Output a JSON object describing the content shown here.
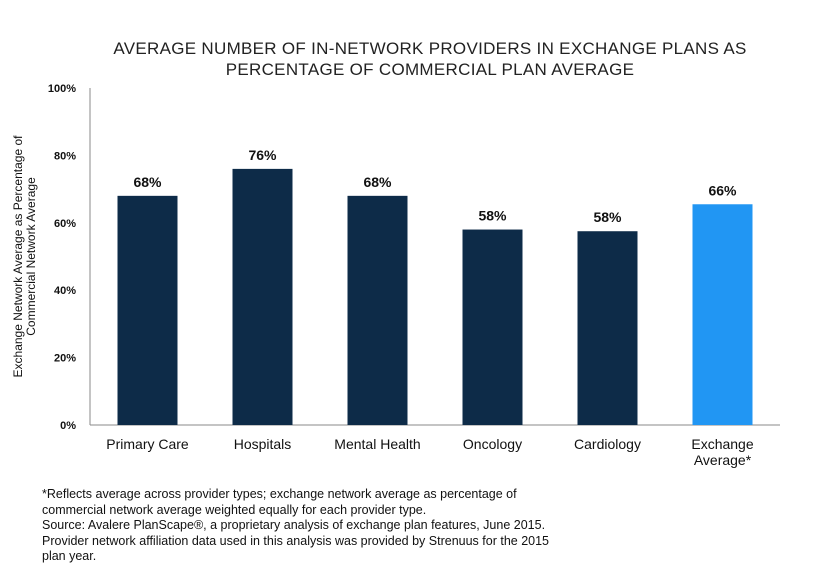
{
  "chart_data": {
    "type": "bar",
    "title_lines": [
      "AVERAGE NUMBER OF IN-NETWORK PROVIDERS IN EXCHANGE PLANS AS",
      "PERCENTAGE OF COMMERCIAL PLAN AVERAGE"
    ],
    "ylabel_lines": [
      "Exchange Network Average as Percentage of",
      "Commercial Network Average"
    ],
    "xlabel": "",
    "ylim": [
      0,
      100
    ],
    "y_ticks": [
      0,
      20,
      40,
      60,
      80,
      100
    ],
    "y_tick_labels": [
      "0%",
      "20%",
      "40%",
      "60%",
      "80%",
      "100%"
    ],
    "categories": [
      [
        "Primary Care"
      ],
      [
        "Hospitals"
      ],
      [
        "Mental Health"
      ],
      [
        "Oncology"
      ],
      [
        "Cardiology"
      ],
      [
        "Exchange",
        "Average*"
      ]
    ],
    "values": [
      68,
      76,
      68,
      58,
      58,
      66
    ],
    "plot_values": [
      68,
      76,
      68,
      58,
      57.5,
      65.5
    ],
    "data_labels": [
      "68%",
      "76%",
      "68%",
      "58%",
      "58%",
      "66%"
    ],
    "bar_colors": [
      "#0d2b48",
      "#0d2b48",
      "#0d2b48",
      "#0d2b48",
      "#0d2b48",
      "#2196f3"
    ],
    "grid": false,
    "legend": "none"
  },
  "footnotes": [
    "*Reflects average across provider types; exchange network average as percentage of",
    "commercial network average weighted equally for each provider type.",
    "Source: Avalere PlanScape®, a proprietary analysis of exchange plan features, June 2015.",
    "Provider network affiliation data used in this analysis was provided by Strenuus for the 2015",
    "plan year."
  ]
}
